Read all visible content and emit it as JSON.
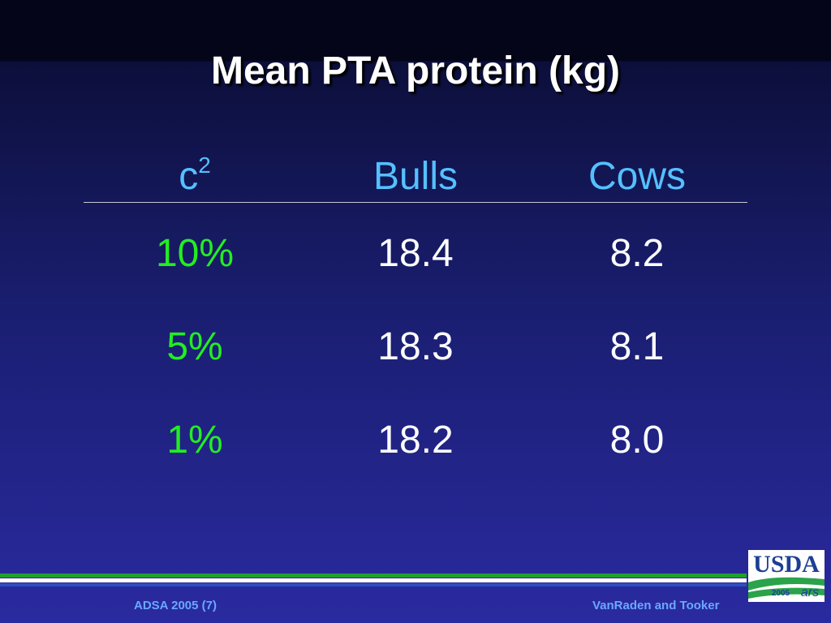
{
  "header": {
    "title": "Mean PTA protein (kg)"
  },
  "table": {
    "columns": [
      {
        "base": "c",
        "sup": "2"
      },
      "Bulls",
      "Cows"
    ],
    "rows": [
      [
        "10%",
        "18.4",
        "8.2"
      ],
      [
        "5%",
        "18.3",
        "8.1"
      ],
      [
        "1%",
        "18.2",
        "8.0"
      ]
    ]
  },
  "footer": {
    "left": "ADSA 2005 (7)",
    "right": "VanRaden and Tooker"
  },
  "logo": {
    "name": "USDA",
    "year": "2005",
    "agency": "ars"
  }
}
